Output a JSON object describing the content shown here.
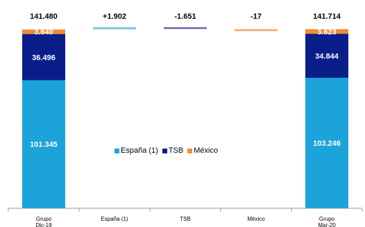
{
  "chart_data": {
    "type": "bar",
    "subtype": "waterfall",
    "categories": [
      "Grupo\nDic-19",
      "España (1)",
      "TSB",
      "México",
      "Grupo\nMar-20"
    ],
    "totals": [
      "141.480",
      "+1.902",
      "-1.651",
      "-17",
      "141.714"
    ],
    "series": [
      {
        "name": "España (1)",
        "color": "#1ca3d9",
        "stacks": [
          {
            "category": 0,
            "value": 101345,
            "label": "101.345"
          },
          {
            "category": 4,
            "value": 103246,
            "label": "103.246"
          }
        ],
        "change": {
          "category": 1,
          "value": 1902
        }
      },
      {
        "name": "TSB",
        "color": "#0a1e8a",
        "stacks": [
          {
            "category": 0,
            "value": 36496,
            "label": "36.496"
          },
          {
            "category": 4,
            "value": 34844,
            "label": "34.844"
          }
        ],
        "change": {
          "category": 2,
          "value": -1651
        }
      },
      {
        "name": "México",
        "color": "#f28c36",
        "stacks": [
          {
            "category": 0,
            "value": 3640,
            "label": "3.640"
          },
          {
            "category": 4,
            "value": 3623,
            "label": "3.623"
          }
        ],
        "change": {
          "category": 3,
          "value": -17
        }
      }
    ],
    "change_colors": [
      "#7fcfe6",
      "#7a7fc2",
      "#f5b27d"
    ],
    "legend_position": "center",
    "ylim": [
      0,
      141714
    ]
  }
}
